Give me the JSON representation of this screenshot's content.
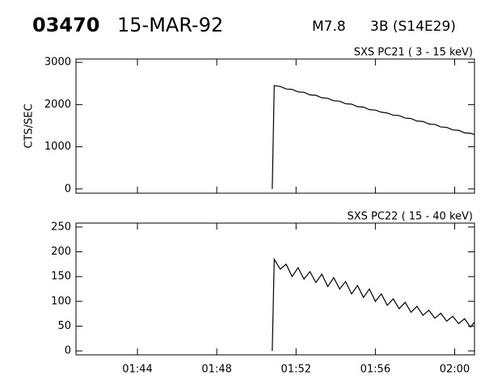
{
  "header": {
    "event": "03470",
    "date": "15-MAR-92",
    "class": "M7.8",
    "optical": "3B (S14E29)"
  },
  "chart_data": [
    {
      "type": "line",
      "title": "SXS PC21  (  3 - 15 keV)",
      "y_label": "CTS/SEC",
      "color": "#000000",
      "x": [
        110.8,
        110.9,
        111.2,
        111.5,
        111.8,
        112.1,
        112.4,
        112.7,
        113.0,
        113.3,
        113.6,
        113.9,
        114.2,
        114.5,
        114.8,
        115.1,
        115.4,
        115.7,
        116.0,
        116.3,
        116.6,
        116.9,
        117.2,
        117.5,
        117.8,
        118.1,
        118.4,
        118.7,
        119.0,
        119.3,
        119.6,
        119.9,
        120.2,
        120.5,
        120.8,
        121.0
      ],
      "values": [
        0,
        2450,
        2430,
        2370,
        2360,
        2300,
        2290,
        2230,
        2220,
        2160,
        2150,
        2090,
        2080,
        2020,
        2010,
        1950,
        1940,
        1880,
        1870,
        1820,
        1800,
        1750,
        1740,
        1680,
        1670,
        1610,
        1600,
        1540,
        1530,
        1470,
        1460,
        1400,
        1390,
        1330,
        1320,
        1290
      ],
      "xlim": [
        100.9,
        121.0
      ],
      "xticks": [
        104,
        108,
        112,
        116,
        120
      ],
      "ylim": [
        -100,
        3080
      ],
      "yticks": [
        0,
        1000,
        2000,
        3000
      ]
    },
    {
      "type": "line",
      "title": "SXS PC22  ( 15 - 40 keV)",
      "color": "#000000",
      "x": [
        110.8,
        110.9,
        111.2,
        111.5,
        111.8,
        112.1,
        112.4,
        112.7,
        113.0,
        113.3,
        113.6,
        113.9,
        114.2,
        114.5,
        114.8,
        115.1,
        115.4,
        115.7,
        116.0,
        116.3,
        116.6,
        116.9,
        117.2,
        117.5,
        117.8,
        118.1,
        118.4,
        118.7,
        119.0,
        119.3,
        119.6,
        119.9,
        120.2,
        120.5,
        120.8,
        121.0
      ],
      "values": [
        0,
        185,
        165,
        175,
        150,
        168,
        145,
        160,
        138,
        155,
        130,
        148,
        125,
        140,
        115,
        132,
        108,
        125,
        100,
        115,
        92,
        105,
        85,
        98,
        78,
        90,
        72,
        82,
        66,
        76,
        60,
        70,
        55,
        65,
        48,
        58
      ],
      "xlim": [
        100.9,
        121.0
      ],
      "xticks": [
        {
          "value": 104,
          "label": "01:44"
        },
        {
          "value": 108,
          "label": "01:48"
        },
        {
          "value": 112,
          "label": "01:52"
        },
        {
          "value": 116,
          "label": "01:56"
        },
        {
          "value": 120,
          "label": "02:00"
        }
      ],
      "ylim": [
        -8,
        258
      ],
      "yticks": [
        0,
        50,
        100,
        150,
        200,
        250
      ]
    }
  ]
}
